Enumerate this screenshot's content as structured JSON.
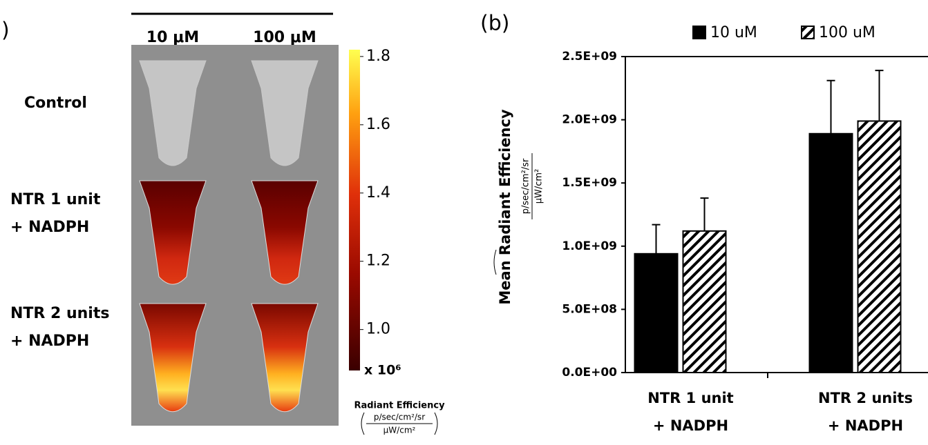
{
  "panel_a": {
    "label": ")",
    "columns": [
      "10 μM",
      "100 μM"
    ],
    "rows": [
      [
        "Control"
      ],
      [
        "NTR 1 unit",
        "+ NADPH"
      ],
      [
        "NTR 2 units",
        "+ NADPH"
      ]
    ],
    "colorbar": {
      "clim": [
        0.88,
        1.82
      ],
      "ticks": [
        {
          "value": 1,
          "label": "1.0"
        },
        1.2,
        1.4,
        1.6,
        1.8
      ],
      "multiplier": "x 10⁶",
      "title": "Radiant Efficiency",
      "unit_numerator": "p/sec/cm²/sr",
      "unit_denominator": "μW/cm²"
    }
  },
  "chart_data": {
    "type": "bar",
    "panel_label": "(b)",
    "ylabel": "Mean Radiant Efficiency",
    "ylabel_unit_numerator": "p/sec/cm²/sr",
    "ylabel_unit_denominator": "μW/cm²",
    "categories": [
      [
        "NTR 1 unit",
        "+ NADPH"
      ],
      [
        "NTR 2 units",
        "+ NADPH"
      ]
    ],
    "series": [
      {
        "name": "10 uM",
        "color": "#000000",
        "hatch": false,
        "values": [
          940000000,
          1890000000
        ],
        "errors": [
          230000000,
          420000000
        ]
      },
      {
        "name": "100 uM",
        "color": "#000000",
        "hatch": true,
        "values": [
          1120000000,
          1990000000
        ],
        "errors": [
          260000000,
          400000000
        ]
      }
    ],
    "ylim": [
      0,
      2500000000
    ],
    "yticks": [
      {
        "value": 0,
        "label": "0.0E+00"
      },
      {
        "value": 500000000,
        "label": "5.0E+08"
      },
      {
        "value": 1000000000,
        "label": "1.0E+09"
      },
      {
        "value": 1500000000,
        "label": "1.5E+09"
      },
      {
        "value": 2000000000,
        "label": "2.0E+09"
      },
      {
        "value": 2500000000,
        "label": "2.5E+09"
      }
    ],
    "grid": false,
    "legend": "top"
  }
}
